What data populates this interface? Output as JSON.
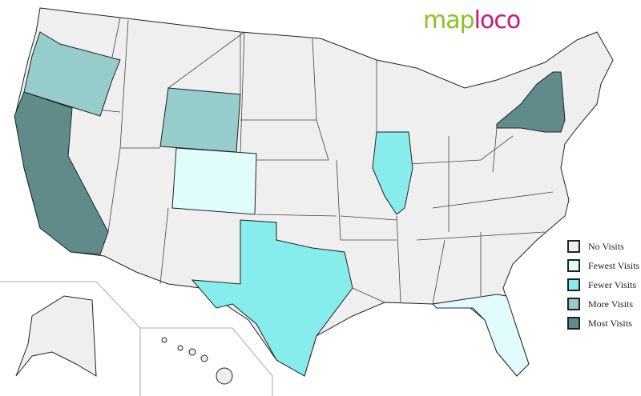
{
  "logo": {
    "part1": "map",
    "part2": "loco"
  },
  "colors": {
    "no": "#efefef",
    "fewest": "#e0fcfc",
    "fewer": "#87ecec",
    "more": "#96cccc",
    "most": "#5f8c8a"
  },
  "legend": [
    {
      "label": "No Visits",
      "color": "#efefef"
    },
    {
      "label": "Fewest Visits",
      "color": "#e0fcfc"
    },
    {
      "label": "Fewer Visits",
      "color": "#87ecec"
    },
    {
      "label": "More Visits",
      "color": "#96cccc"
    },
    {
      "label": "Most Visits",
      "color": "#5f8c8a"
    }
  ],
  "states": [
    {
      "name": "Oregon",
      "level": "more"
    },
    {
      "name": "California",
      "level": "most"
    },
    {
      "name": "Wyoming",
      "level": "more"
    },
    {
      "name": "Colorado",
      "level": "fewest"
    },
    {
      "name": "Texas",
      "level": "fewer"
    },
    {
      "name": "Illinois",
      "level": "fewer"
    },
    {
      "name": "New York",
      "level": "most"
    },
    {
      "name": "Florida",
      "level": "fewest"
    }
  ]
}
